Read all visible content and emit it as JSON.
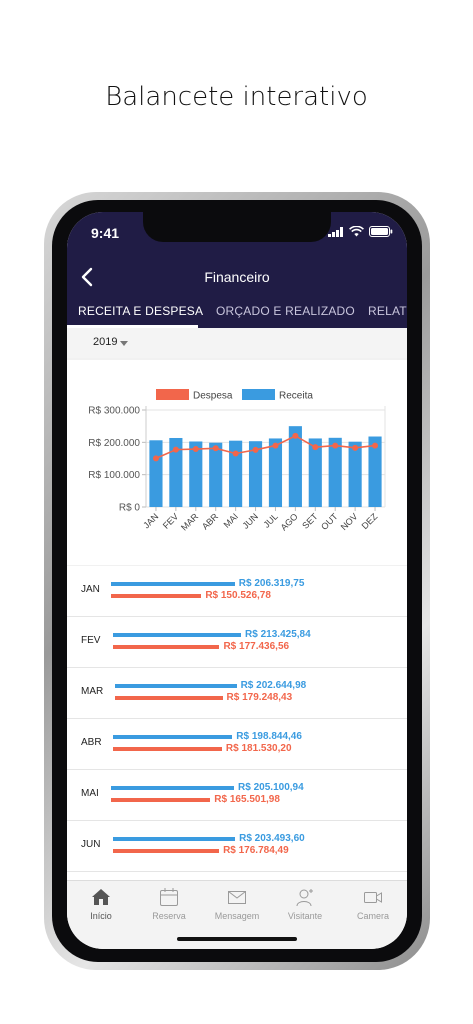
{
  "caption": "Balancete interativo",
  "status": {
    "time": "9:41"
  },
  "navbar": {
    "title": "Financeiro"
  },
  "tabs": [
    {
      "label": "RECEITA E DESPESA",
      "active": true
    },
    {
      "label": "ORÇADO E REALIZADO",
      "active": false
    },
    {
      "label": "RELATO",
      "active": false
    }
  ],
  "year_select": {
    "value": "2019"
  },
  "colors": {
    "receita": "#3a9be0",
    "despesa": "#f2664b",
    "header": "#201c45"
  },
  "chart_data": {
    "type": "bar",
    "legend": [
      "Despesa",
      "Receita"
    ],
    "legend_position": "top-center",
    "categories": [
      "JAN",
      "FEV",
      "MAR",
      "ABR",
      "MAI",
      "JUN",
      "JUL",
      "AGO",
      "SET",
      "OUT",
      "NOV",
      "DEZ"
    ],
    "series": [
      {
        "name": "Receita",
        "kind": "bar",
        "values": [
          206320,
          213426,
          202645,
          198845,
          205101,
          203494,
          212000,
          250000,
          212000,
          214000,
          202000,
          218000
        ]
      },
      {
        "name": "Despesa",
        "kind": "line",
        "values": [
          150527,
          177437,
          179248,
          181530,
          165502,
          176784,
          190000,
          220000,
          185000,
          190000,
          183000,
          190000
        ]
      }
    ],
    "yticks": [
      "R$ 0",
      "R$ 100.000",
      "R$ 200.000",
      "R$ 300.000"
    ],
    "ylim": [
      0,
      300000
    ],
    "grid": true
  },
  "list": [
    {
      "month": "JAN",
      "receita": "R$ 206.319,75",
      "despesa": "R$ 150.526,78",
      "receita_value": 206319.75,
      "despesa_value": 150526.78
    },
    {
      "month": "FEV",
      "receita": "R$ 213.425,84",
      "despesa": "R$ 177.436,56",
      "receita_value": 213425.84,
      "despesa_value": 177436.56
    },
    {
      "month": "MAR",
      "receita": "R$ 202.644,98",
      "despesa": "R$ 179.248,43",
      "receita_value": 202644.98,
      "despesa_value": 179248.43
    },
    {
      "month": "ABR",
      "receita": "R$ 198.844,46",
      "despesa": "R$ 181.530,20",
      "receita_value": 198844.46,
      "despesa_value": 181530.2
    },
    {
      "month": "MAI",
      "receita": "R$ 205.100,94",
      "despesa": "R$ 165.501,98",
      "receita_value": 205100.94,
      "despesa_value": 165501.98
    },
    {
      "month": "JUN",
      "receita": "R$ 203.493,60",
      "despesa": "R$ 176.784,49",
      "receita_value": 203493.6,
      "despesa_value": 176784.49
    }
  ],
  "tabbar": [
    {
      "label": "Início",
      "icon": "home-icon",
      "active": true
    },
    {
      "label": "Reserva",
      "icon": "calendar-icon",
      "active": false
    },
    {
      "label": "Mensagem",
      "icon": "envelope-icon",
      "active": false
    },
    {
      "label": "Visitante",
      "icon": "visitor-icon",
      "active": false
    },
    {
      "label": "Camera",
      "icon": "camera-icon",
      "active": false
    }
  ]
}
